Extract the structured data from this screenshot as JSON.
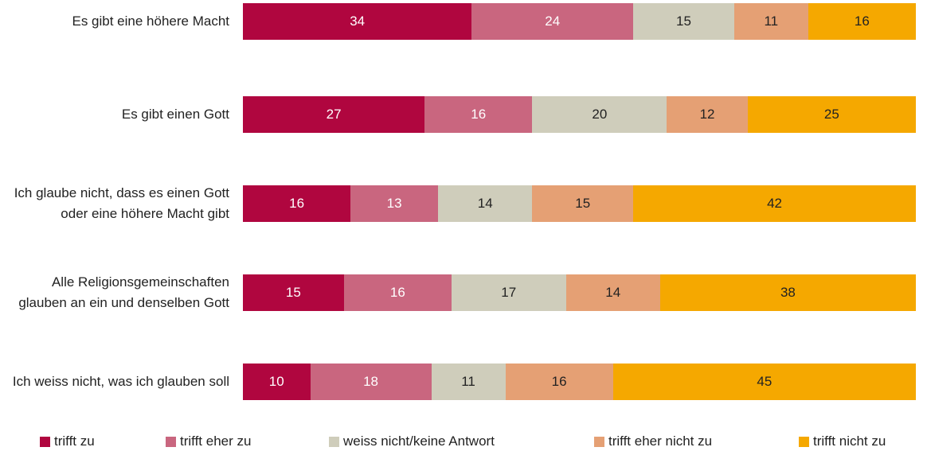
{
  "chart_data": {
    "type": "stacked-barh",
    "categories": [
      "Es gibt eine höhere Macht",
      "Es gibt einen Gott",
      "Ich glaube nicht, dass es einen Gott oder eine höhere Macht gibt",
      "Alle Religionsgemeinschaften glauben an ein und denselben Gott",
      "Ich weiss nicht, was ich glauben soll"
    ],
    "series": [
      {
        "name": "trifft zu",
        "color": "#b0063f",
        "values": [
          34,
          27,
          16,
          15,
          10
        ]
      },
      {
        "name": "trifft eher zu",
        "color": "#c9667f",
        "values": [
          24,
          16,
          13,
          16,
          18
        ]
      },
      {
        "name": "weiss nicht/keine Antwort",
        "color": "#cfcdbb",
        "values": [
          15,
          20,
          14,
          17,
          11
        ]
      },
      {
        "name": "trifft eher nicht zu",
        "color": "#e5a074",
        "values": [
          11,
          12,
          15,
          14,
          16
        ]
      },
      {
        "name": "trifft nicht zu",
        "color": "#f5a800",
        "values": [
          16,
          25,
          42,
          38,
          45
        ]
      }
    ],
    "legend": "bottom"
  }
}
